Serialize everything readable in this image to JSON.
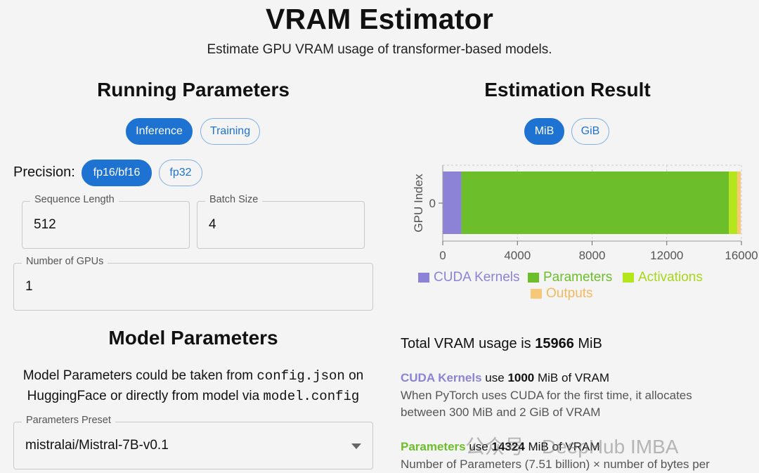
{
  "header": {
    "title": "VRAM Estimator",
    "subtitle": "Estimate GPU VRAM usage of transformer-based models."
  },
  "running": {
    "title": "Running Parameters",
    "mode_tabs": [
      {
        "label": "Inference",
        "active": true
      },
      {
        "label": "Training",
        "active": false
      }
    ],
    "precision_label": "Precision:",
    "precision_tabs": [
      {
        "label": "fp16/bf16",
        "active": true
      },
      {
        "label": "fp32",
        "active": false
      }
    ],
    "sequence_length": {
      "label": "Sequence Length",
      "value": "512"
    },
    "batch_size": {
      "label": "Batch Size",
      "value": "4"
    },
    "num_gpus": {
      "label": "Number of GPUs",
      "value": "1"
    }
  },
  "model": {
    "title": "Model Parameters",
    "desc_part1": "Model Parameters could be taken from ",
    "desc_code1": "config.json",
    "desc_part2": " on",
    "desc_part3": "HuggingFace or directly from model via ",
    "desc_code2": "model.config",
    "preset": {
      "label": "Parameters Preset",
      "value": "mistralai/Mistral-7B-v0.1"
    }
  },
  "result": {
    "title": "Estimation Result",
    "unit_tabs": [
      {
        "label": "MiB",
        "active": true
      },
      {
        "label": "GiB",
        "active": false
      }
    ],
    "total_prefix": "Total VRAM usage is ",
    "total_value": "15966",
    "total_unit": " MiB",
    "cuda_name": "CUDA Kernels",
    "cuda_use": " use ",
    "cuda_value": "1000",
    "cuda_suffix": " MiB of VRAM",
    "cuda_desc1": "When PyTorch uses CUDA for the first time, it allocates",
    "cuda_desc2": "between 300 MiB and 2 GiB of VRAM",
    "params_name": "Parameters",
    "params_use": " use ",
    "params_value": "14324",
    "params_suffix": " MiB of VRAM",
    "params_desc": "Number of Parameters (7.51 billion) × number of bytes per"
  },
  "watermark": {
    "text": "公众号 · DeepHub IMBA"
  },
  "colors": {
    "accent": "#1e73d2",
    "cuda": "#8c82d6",
    "parameters": "#6cbf2a",
    "activations": "#b5e61d",
    "outputs": "#f8c879"
  },
  "chart_data": {
    "type": "bar",
    "orientation": "horizontal",
    "stacked": true,
    "categories": [
      "0"
    ],
    "ylabel": "GPU Index",
    "xlabel": "",
    "xlim": [
      0,
      16000
    ],
    "xticks": [
      "0",
      "4000",
      "8000",
      "12000",
      "16000"
    ],
    "grid": true,
    "legend_position": "bottom",
    "series": [
      {
        "name": "CUDA Kernels",
        "values": [
          1000
        ],
        "color": "#8c82d6"
      },
      {
        "name": "Parameters",
        "values": [
          14324
        ],
        "color": "#6cbf2a"
      },
      {
        "name": "Activations",
        "values": [
          450
        ],
        "color": "#b5e61d"
      },
      {
        "name": "Outputs",
        "values": [
          192
        ],
        "color": "#f8c879"
      }
    ]
  }
}
